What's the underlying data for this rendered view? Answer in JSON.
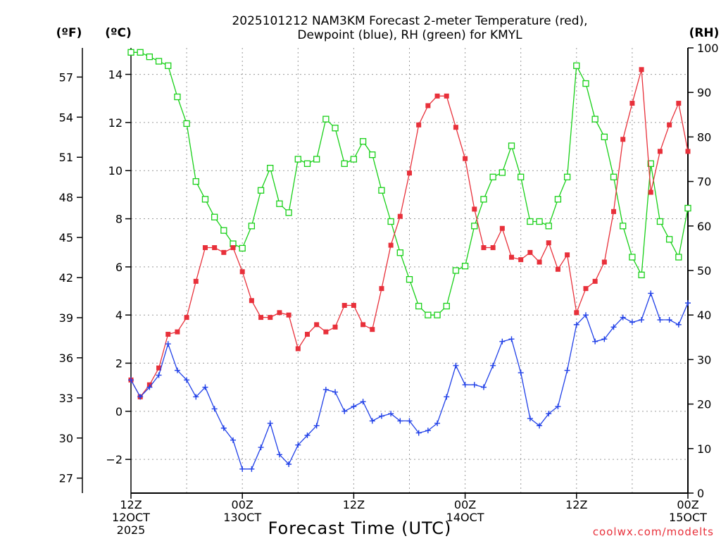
{
  "chart_data": {
    "type": "line",
    "title_line1": "2025101212 NAM3KM Forecast 2-meter Temperature (red),",
    "title_line2": "Dewpoint (blue), RH (green) for KMYL",
    "xlabel": "Forecast Time (UTC)",
    "watermark": "coolwx.com/modelts",
    "axis_f": {
      "label": "(ºF)",
      "ticks": [
        "27",
        "30",
        "33",
        "36",
        "39",
        "42",
        "45",
        "48",
        "51",
        "54",
        "57"
      ],
      "tick_values": [
        27,
        30,
        33,
        36,
        39,
        42,
        45,
        48,
        51,
        54,
        57
      ]
    },
    "axis_c": {
      "label": "(ºC)",
      "ylim": [
        -3.4,
        15.1
      ],
      "ticks": [
        "−2",
        "0",
        "2",
        "4",
        "6",
        "8",
        "10",
        "12",
        "14"
      ],
      "tick_values": [
        -2,
        0,
        2,
        4,
        6,
        8,
        10,
        12,
        14
      ]
    },
    "axis_rh": {
      "label": "(RH)",
      "ylim": [
        0,
        100
      ],
      "ticks": [
        "0",
        "10",
        "20",
        "30",
        "40",
        "50",
        "60",
        "70",
        "80",
        "90",
        "100"
      ],
      "tick_values": [
        0,
        10,
        20,
        30,
        40,
        50,
        60,
        70,
        80,
        90,
        100
      ]
    },
    "x_range_hours": [
      0,
      60
    ],
    "x_ticks": [
      {
        "hour": 0,
        "label1": "12Z",
        "label2": "12OCT",
        "label3": "2025"
      },
      {
        "hour": 12,
        "label1": "00Z",
        "label2": "13OCT",
        "label3": ""
      },
      {
        "hour": 24,
        "label1": "12Z",
        "label2": "",
        "label3": ""
      },
      {
        "hour": 36,
        "label1": "00Z",
        "label2": "14OCT",
        "label3": ""
      },
      {
        "hour": 48,
        "label1": "12Z",
        "label2": "",
        "label3": ""
      },
      {
        "hour": 60,
        "label1": "00Z",
        "label2": "15OCT",
        "label3": ""
      }
    ],
    "colors": {
      "temperature": "#e8303a",
      "dewpoint": "#2040e8",
      "rh": "#18d018"
    },
    "series": [
      {
        "name": "Temperature (C)",
        "axis": "c",
        "values": [
          1.3,
          0.6,
          1.1,
          1.8,
          3.2,
          3.3,
          3.9,
          5.4,
          6.8,
          6.8,
          6.6,
          6.8,
          5.8,
          4.6,
          3.9,
          3.9,
          4.1,
          4.0,
          2.6,
          3.2,
          3.6,
          3.3,
          3.5,
          4.4,
          4.4,
          3.6,
          3.4,
          5.1,
          6.9,
          8.1,
          9.9,
          11.9,
          12.7,
          13.1,
          13.1,
          11.8,
          10.5,
          8.4,
          6.8,
          6.8,
          7.6,
          6.4,
          6.3,
          6.6,
          6.2,
          7.0,
          5.9,
          6.5,
          4.1,
          5.1,
          5.4,
          6.2,
          8.3,
          11.3,
          12.8,
          14.2,
          9.1,
          10.8,
          11.9,
          12.8,
          10.8
        ]
      },
      {
        "name": "Dewpoint (C)",
        "axis": "c",
        "values": [
          1.3,
          0.6,
          1.0,
          1.5,
          2.8,
          1.7,
          1.3,
          0.6,
          1.0,
          0.1,
          -0.7,
          -1.2,
          -2.4,
          -2.4,
          -1.5,
          -0.5,
          -1.8,
          -2.2,
          -1.4,
          -1.0,
          -0.6,
          0.9,
          0.8,
          0.0,
          0.2,
          0.4,
          -0.4,
          -0.2,
          -0.1,
          -0.4,
          -0.4,
          -0.9,
          -0.8,
          -0.5,
          0.6,
          1.9,
          1.1,
          1.1,
          1.0,
          1.9,
          2.9,
          3.0,
          1.6,
          -0.3,
          -0.6,
          -0.1,
          0.2,
          1.7,
          3.6,
          4.0,
          2.9,
          3.0,
          3.5,
          3.9,
          3.7,
          3.8,
          4.9,
          3.8,
          3.8,
          3.6,
          4.5
        ]
      },
      {
        "name": "RH (%)",
        "axis": "rh",
        "values": [
          99,
          99,
          98,
          97,
          96,
          89,
          83,
          70,
          66,
          62,
          59,
          56,
          55,
          60,
          68,
          73,
          65,
          63,
          75,
          74,
          75,
          84,
          82,
          74,
          75,
          79,
          76,
          68,
          61,
          54,
          48,
          42,
          40,
          40,
          42,
          50,
          51,
          60,
          66,
          71,
          72,
          78,
          71,
          61,
          61,
          60,
          66,
          71,
          96,
          92,
          84,
          80,
          71,
          60,
          53,
          49,
          74,
          61,
          57,
          53,
          64
        ]
      }
    ]
  }
}
